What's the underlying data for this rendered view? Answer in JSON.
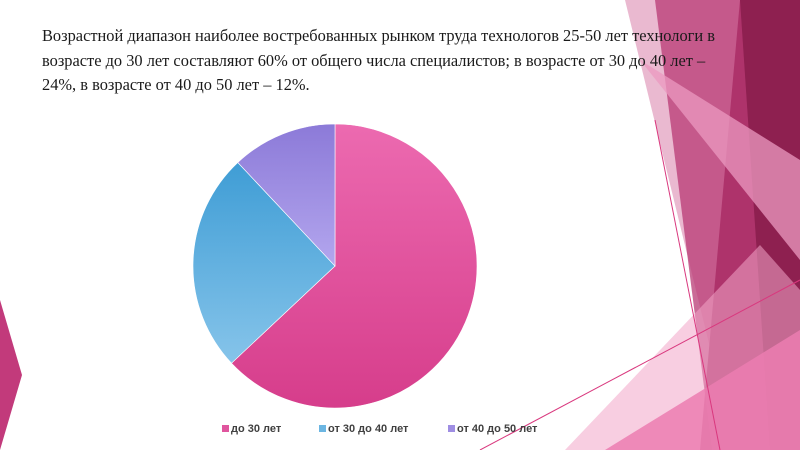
{
  "slide": {
    "text": "Возрастной диапазон наиболее востребованных рынком труда технологов 25-50 лет технологи в возрасте до 30 лет составляют 60% от общего числа специалистов; в возрасте от 30 до 40 лет – 24%, в возрасте от 40 до 50 лет – 12%."
  },
  "colors": {
    "slice_1": "#e0559e",
    "slice_2": "#6cb6e2",
    "slice_3": "#9f8ee3",
    "deco_dark": "#8e2050",
    "deco_mid": "#d9387e",
    "deco_light": "#eb9ac0"
  },
  "chart_data": {
    "type": "pie",
    "categories": [
      "до 30 лет",
      "от 30 до 40 лет",
      "от 40 до 50 лет"
    ],
    "values": [
      63,
      25,
      12
    ],
    "start_angle_deg": 0,
    "direction": "clockwise",
    "legend_position": "bottom"
  }
}
